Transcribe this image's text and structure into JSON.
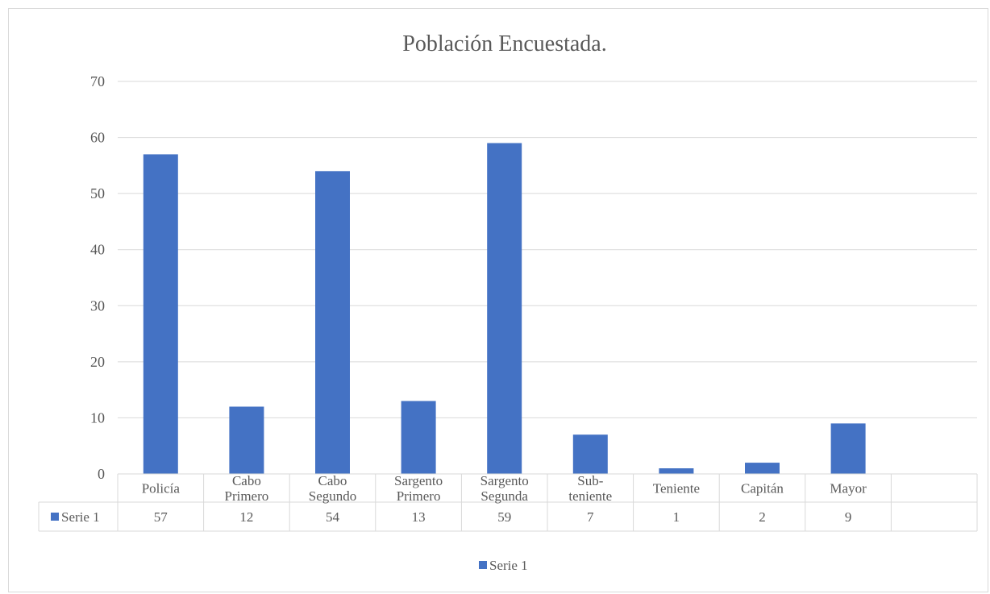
{
  "chart_data": {
    "type": "bar",
    "title": "Población Encuestada.",
    "categories": [
      [
        "Policía"
      ],
      [
        "Cabo",
        "Primero"
      ],
      [
        "Cabo",
        "Segundo"
      ],
      [
        "Sargento",
        "Primero"
      ],
      [
        "Sargento",
        "Segunda"
      ],
      [
        "Sub-",
        "teniente"
      ],
      [
        "Teniente"
      ],
      [
        "Capitán"
      ],
      [
        "Mayor"
      ],
      [
        ""
      ]
    ],
    "series": [
      {
        "name": "Serie 1",
        "values": [
          57,
          12,
          54,
          13,
          59,
          7,
          1,
          2,
          9,
          null
        ]
      }
    ],
    "ylim": [
      0,
      70
    ],
    "yticks": [
      0,
      10,
      20,
      30,
      40,
      50,
      60,
      70
    ],
    "grid": true,
    "legend": "bottom",
    "data_table": true,
    "colors": {
      "bar": "#4472C4",
      "grid": "#d9d9d9",
      "text": "#595959"
    }
  }
}
